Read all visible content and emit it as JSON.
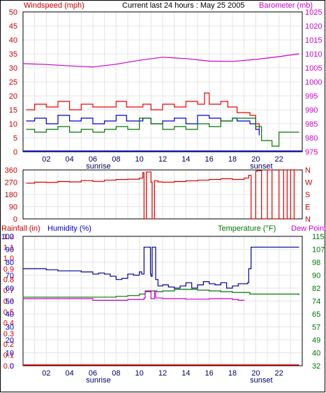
{
  "chart_data": [
    {
      "type": "line",
      "header": {
        "left": "Windspeed (mph)",
        "center": "Current last 24 hours : May 25 2005",
        "right": "Barometer (mb)"
      },
      "x_ticks": [
        "02",
        "04",
        "06",
        "08",
        "10",
        "12",
        "14",
        "16",
        "18",
        "20",
        "22"
      ],
      "x_sublabels": [
        {
          "hour": 6,
          "text": "sunrise"
        },
        {
          "hour": 20,
          "text": "sunset"
        }
      ],
      "y_left": {
        "ticks": [
          "0",
          "5",
          "10",
          "15",
          "20",
          "25",
          "30",
          "35",
          "40",
          "45",
          "50"
        ],
        "ylim": [
          0,
          50
        ],
        "color": "#cc0000"
      },
      "y_right": {
        "ticks": [
          "975",
          "980",
          "985",
          "990",
          "995",
          "1000",
          "1005",
          "1010",
          "1015",
          "1020",
          "1025"
        ],
        "ylim": [
          975,
          1025
        ],
        "color": "#cc00cc"
      },
      "xlim": [
        0,
        24
      ],
      "series": [
        {
          "role": "barometer",
          "color": "#cc00cc",
          "axis": "right",
          "x": [
            0,
            2,
            4,
            6,
            8,
            10,
            12,
            14,
            16,
            18,
            20,
            22,
            23.7
          ],
          "values": [
            1006.5,
            1006.2,
            1005.7,
            1005.3,
            1006.3,
            1007.7,
            1008.8,
            1008.3,
            1007.4,
            1007.3,
            1008.0,
            1009.0,
            1010.0
          ]
        },
        {
          "role": "gust",
          "color": "#ee0000",
          "axis": "left",
          "x": [
            0.3,
            1,
            2,
            3,
            4,
            5,
            6,
            7,
            8,
            8.9,
            10.3,
            11,
            12,
            13,
            14,
            15,
            15.6,
            16,
            17,
            17.6,
            18.4,
            19.5,
            20,
            20.3
          ],
          "values": [
            15,
            17,
            16,
            18,
            15,
            17,
            16,
            16,
            18,
            16,
            17,
            15,
            17,
            16,
            18,
            17,
            21,
            17,
            18,
            16,
            14,
            13,
            10,
            8
          ]
        },
        {
          "role": "average",
          "color": "#0000cc",
          "axis": "left",
          "x": [
            0.3,
            1,
            2,
            3,
            4,
            5,
            6,
            7,
            8,
            8.9,
            10.3,
            11,
            12,
            13,
            14,
            15,
            16,
            17,
            18,
            18.4,
            19.5,
            20,
            20.3
          ],
          "values": [
            11,
            12,
            10,
            13,
            11,
            12,
            10,
            11,
            13,
            11,
            12,
            10,
            11,
            12,
            10,
            13,
            12,
            11,
            12,
            11,
            10,
            8,
            6
          ]
        },
        {
          "role": "low",
          "color": "#007700",
          "axis": "left",
          "x": [
            0.3,
            1,
            2,
            3,
            4,
            5,
            6,
            7,
            8,
            9,
            10,
            11,
            12,
            13,
            14,
            15,
            16,
            17,
            18,
            19,
            19.5,
            20,
            20.5,
            21,
            21.4,
            22,
            23.7
          ],
          "values": [
            8,
            7,
            8,
            9,
            7,
            8,
            7,
            8,
            9,
            8,
            12,
            10,
            8,
            9,
            8,
            10,
            9,
            11,
            12,
            12,
            12,
            9,
            4,
            4,
            2,
            7,
            7
          ]
        }
      ]
    },
    {
      "type": "line",
      "y_left": {
        "ticks": [
          "0",
          "90",
          "180",
          "270",
          "360"
        ],
        "ylim": [
          0,
          360
        ],
        "color": "#cc0000"
      },
      "y_right": {
        "ticks": [
          "N",
          "E",
          "S",
          "W",
          "N"
        ],
        "color": "#cc0000"
      },
      "xlim": [
        0,
        24
      ],
      "series": [
        {
          "role": "wind direction",
          "color": "#dd0000",
          "x": [
            0.3,
            1,
            2,
            3,
            4,
            5,
            6,
            7,
            8,
            9,
            10,
            10.3,
            10.4,
            10.5,
            10.6,
            11,
            11.1,
            11.2,
            11.3,
            11.6,
            12,
            13,
            14,
            15,
            16,
            17,
            18,
            19,
            19.4,
            19.6,
            19.7,
            20,
            20.1,
            20.5,
            21,
            21.1,
            21.4,
            21.6,
            22,
            22.4,
            22.7,
            23,
            23.3,
            23.7
          ],
          "values": [
            262,
            270,
            268,
            275,
            272,
            282,
            276,
            285,
            290,
            292,
            300,
            340,
            0,
            0,
            345,
            270,
            0,
            0,
            280,
            272,
            270,
            275,
            280,
            285,
            290,
            295,
            290,
            300,
            320,
            0,
            0,
            350,
            355,
            0,
            360,
            360,
            0,
            0,
            360,
            0,
            360,
            0,
            360,
            360
          ]
        }
      ]
    },
    {
      "type": "line",
      "header": {
        "left1": "Rainfall (in)",
        "left2": "Humidity (%)",
        "right1": "Temperature (°F)",
        "right2": "Dew Point"
      },
      "x_ticks": [
        "02",
        "04",
        "06",
        "08",
        "10",
        "12",
        "14",
        "16",
        "18",
        "20",
        "22"
      ],
      "x_sublabels": [
        {
          "hour": 6,
          "text": "sunrise"
        },
        {
          "hour": 20,
          "text": "sunset"
        }
      ],
      "y_rain": {
        "ticks": [
          "0.0",
          "0.1",
          "0.2",
          "0.3",
          "0.4",
          "0.5",
          "0.6",
          "0.7",
          "0.8",
          "0.9",
          "1.0",
          "1.1",
          "1.2"
        ],
        "ylim": [
          0,
          1.2
        ],
        "color": "#cc0000"
      },
      "y_humidity": {
        "ticks": [
          "0",
          "10",
          "20",
          "30",
          "40",
          "50",
          "60",
          "70",
          "80",
          "90",
          "100"
        ],
        "ylim": [
          0,
          120
        ],
        "color": "#0000cc"
      },
      "y_temp": {
        "ticks": [
          "32",
          "40",
          "49",
          "57",
          "65",
          "74",
          "82",
          "90",
          "98",
          "107",
          "115"
        ],
        "ylim": [
          32,
          115
        ],
        "color": "#007700"
      },
      "xlim": [
        0,
        24
      ],
      "series": [
        {
          "role": "humidity",
          "color": "#00009a",
          "axis": "humidity",
          "x": [
            0,
            1,
            2,
            3,
            4,
            5,
            6,
            6.5,
            7,
            7.5,
            8,
            8.5,
            9,
            9.5,
            10,
            10.2,
            10.35,
            10.4,
            10.9,
            10.95,
            11,
            11.1,
            11.35,
            11.4,
            11.6,
            12,
            12.5,
            13,
            13.5,
            14,
            14.5,
            15,
            15.5,
            16,
            16.5,
            17,
            17.5,
            18,
            18.5,
            19,
            19.3,
            19.4,
            19.6,
            20,
            22,
            23.7
          ],
          "values": [
            90,
            90,
            89,
            88,
            88,
            87,
            85,
            86,
            85,
            83,
            80,
            81,
            85,
            84,
            87,
            85,
            85,
            110,
            110,
            85,
            83,
            110,
            110,
            80,
            74,
            75,
            73,
            72,
            74,
            77,
            72,
            75,
            78,
            76,
            75,
            77,
            72,
            74,
            76,
            76,
            77,
            90,
            110,
            110,
            110,
            110
          ]
        },
        {
          "role": "temperature",
          "color": "#007700",
          "axis": "temp",
          "x": [
            0,
            2,
            4,
            6,
            8,
            9,
            10,
            10.5,
            11,
            11.5,
            12,
            13,
            14,
            15,
            16,
            17,
            18,
            19,
            19.5,
            20,
            22,
            23.7
          ],
          "values": [
            76,
            76,
            76,
            76,
            76.5,
            77,
            78,
            79.5,
            80,
            79.5,
            80,
            81,
            81,
            80.5,
            80,
            79.5,
            79,
            79,
            78,
            78,
            78,
            77.5
          ]
        },
        {
          "role": "dew point",
          "color": "#cc00cc",
          "axis": "temp",
          "x": [
            0,
            2,
            4,
            6,
            8,
            9,
            10,
            10.4,
            10.5,
            10.9,
            11,
            11.3,
            11.4,
            12,
            14,
            16,
            18,
            18.5,
            19
          ],
          "values": [
            75,
            75,
            75,
            74,
            74,
            74.5,
            74.5,
            75.5,
            80,
            80,
            75,
            80,
            75.5,
            75,
            74.7,
            75,
            74.5,
            74,
            74
          ]
        },
        {
          "role": "rainfall",
          "color": "#cc0000",
          "axis": "rain",
          "x": [
            0,
            23.7
          ],
          "values": [
            0,
            0
          ]
        }
      ]
    }
  ]
}
